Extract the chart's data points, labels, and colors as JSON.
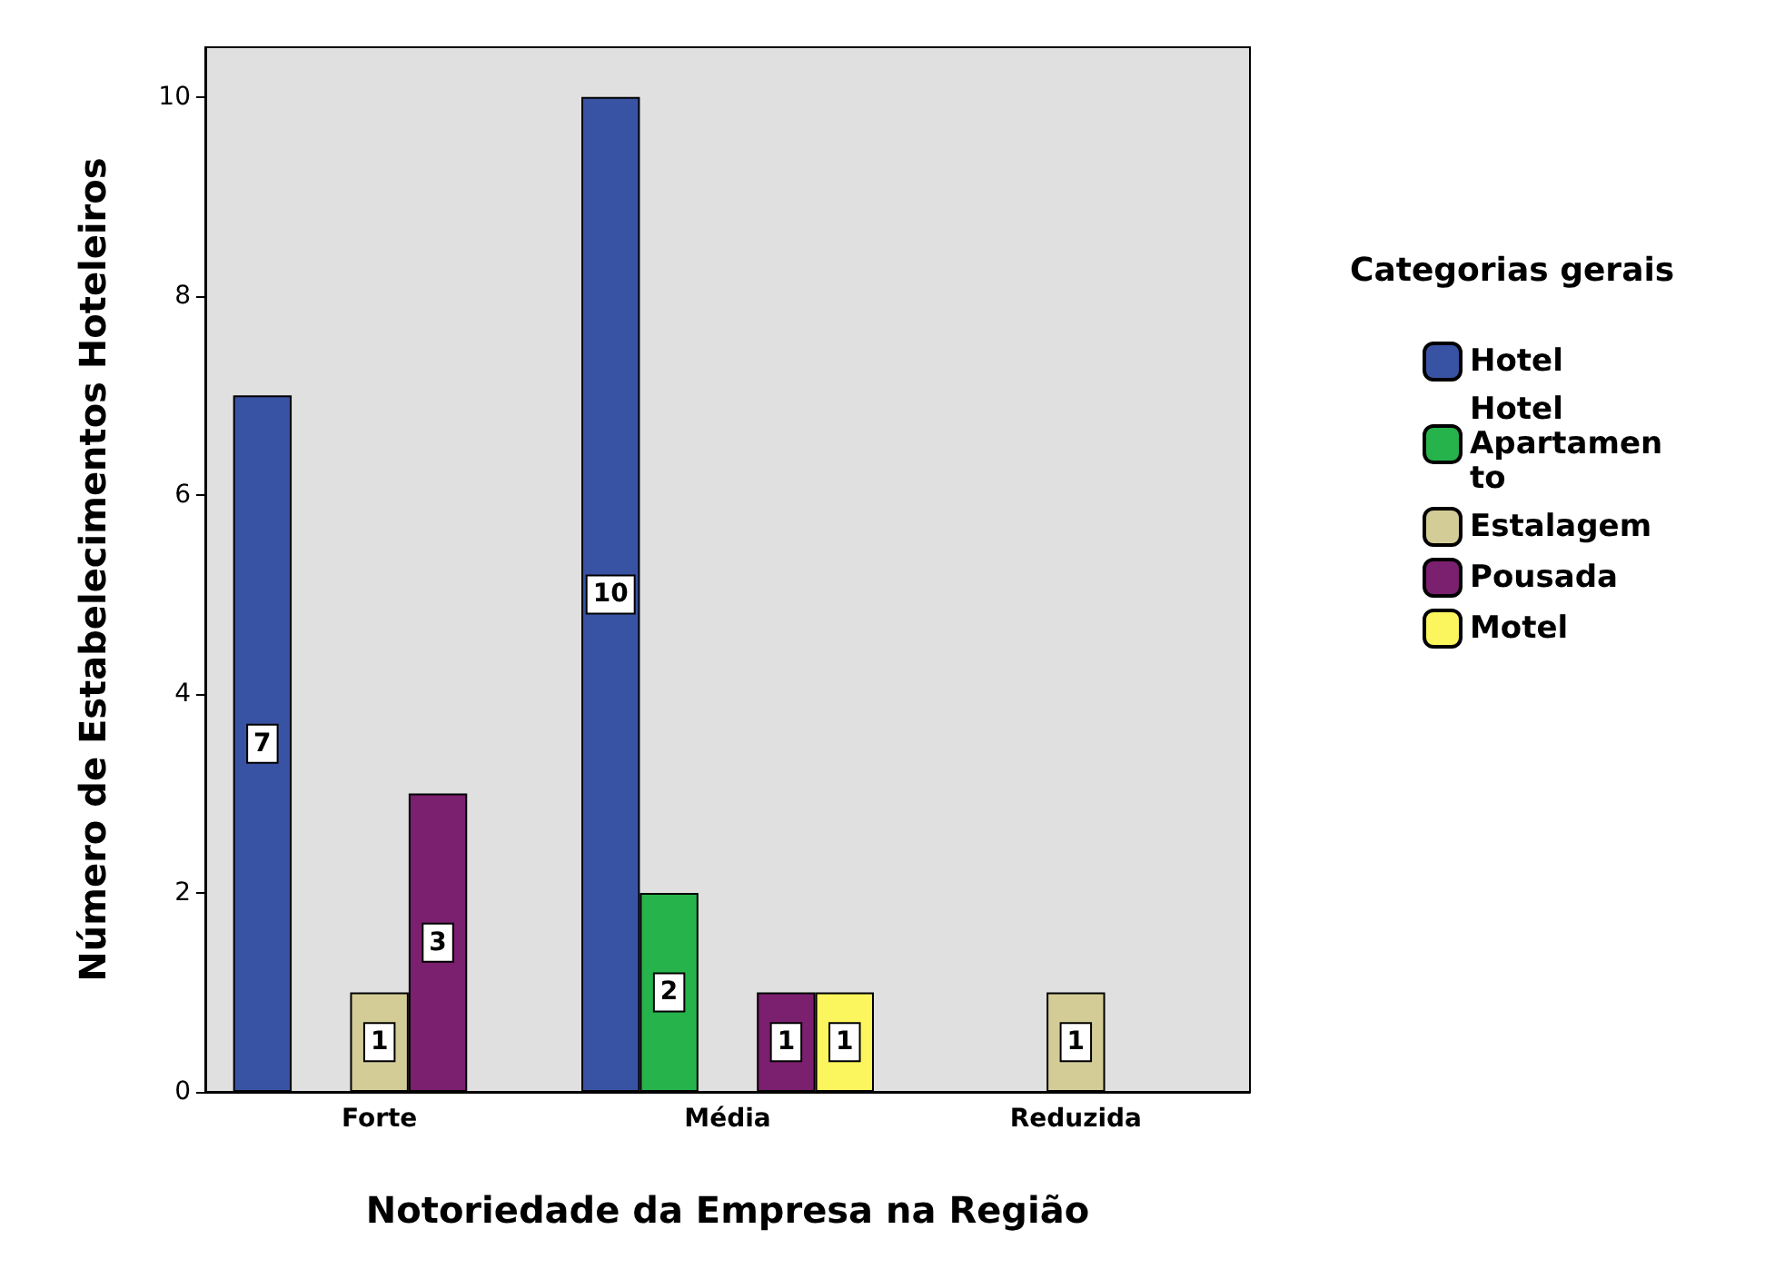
{
  "chart_data": {
    "type": "bar",
    "xlabel": "Notoriedade da Empresa na Região",
    "ylabel": "Número de Estabelecimentos Hoteleiros",
    "legend_title": "Categorias gerais",
    "categories": [
      "Forte",
      "Média",
      "Reduzida"
    ],
    "series": [
      {
        "name": "Hotel",
        "color": "#3953a4",
        "values": [
          7,
          10,
          null
        ]
      },
      {
        "name": "Hotel Apartamento",
        "color": "#27b34b",
        "values": [
          null,
          2,
          null
        ]
      },
      {
        "name": "Estalagem",
        "color": "#d4cc97",
        "values": [
          1,
          null,
          1
        ]
      },
      {
        "name": "Pousada",
        "color": "#7b1f6f",
        "values": [
          3,
          1,
          null
        ]
      },
      {
        "name": "Motel",
        "color": "#fbf55e",
        "values": [
          null,
          1,
          null
        ]
      }
    ],
    "ylim": [
      0,
      10.5
    ],
    "yticks": [
      0,
      2,
      4,
      6,
      8,
      10
    ],
    "grid": false,
    "legend": "right",
    "data_labels": true
  }
}
